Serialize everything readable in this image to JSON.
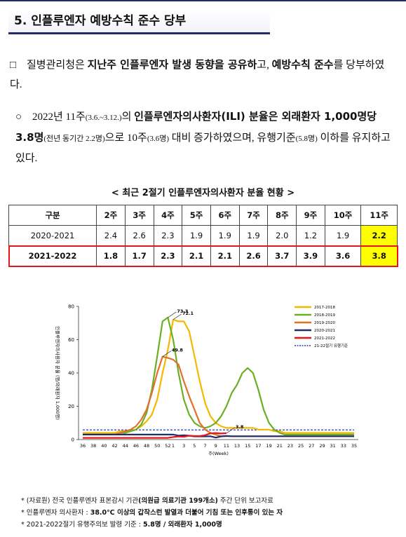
{
  "header": {
    "title": "5. 인플루엔자 예방수칙 준수 당부"
  },
  "paragraphs": [
    {
      "marker": "□",
      "runs": [
        {
          "text": "질병관리청은 "
        },
        {
          "text": "지난주 인플루엔자 발생 동향을 공유하",
          "style": "b"
        },
        {
          "text": "고, "
        },
        {
          "text": "예방수칙 준수",
          "style": "b"
        },
        {
          "text": "를 당부하였다."
        }
      ]
    },
    {
      "marker": "○",
      "runs": [
        {
          "text": "2022년 11주"
        },
        {
          "text": "(3.6.~3.12.)",
          "style": "s"
        },
        {
          "text": "의 "
        },
        {
          "text": "인플루엔자의사환자(ILI) 분율은 외래환자 1,000명당 3.8명",
          "style": "b"
        },
        {
          "text": "(전년 동기간 2.2명)",
          "style": "s"
        },
        {
          "text": "으로 10주"
        },
        {
          "text": "(3.6명)",
          "style": "s"
        },
        {
          "text": " 대비 증가하였으며, 유행기준"
        },
        {
          "text": "(5.8명)",
          "style": "s"
        },
        {
          "text": " 이하를 유지하고 있다."
        }
      ]
    }
  ],
  "table": {
    "title": "< 최근 2절기 인플루엔자의사환자 분율 현황 >",
    "header": [
      "구분",
      "2주",
      "3주",
      "4주",
      "5주",
      "6주",
      "7주",
      "8주",
      "9주",
      "10주",
      "11주"
    ],
    "rows": [
      [
        "2020-2021",
        "2.4",
        "2.6",
        "2.3",
        "1.9",
        "1.9",
        "1.9",
        "2.0",
        "1.2",
        "1.9",
        "2.2"
      ],
      [
        "2021-2022",
        "1.8",
        "1.7",
        "2.3",
        "2.1",
        "2.1",
        "2.6",
        "3.7",
        "3.9",
        "3.6",
        "3.8"
      ]
    ]
  },
  "chart_data": {
    "type": "line",
    "x_label": "주(Week)",
    "y_label": "인플루엔자의사환자 분율 (명/외래환자 1,000명)",
    "categories": [
      "36",
      null,
      "38",
      null,
      "40",
      null,
      "42",
      null,
      "44",
      null,
      "46",
      null,
      "48",
      null,
      "50",
      null,
      "52",
      "1",
      null,
      "3",
      null,
      "5",
      null,
      "7",
      null,
      "9",
      null,
      "11",
      null,
      "13",
      null,
      "15",
      null,
      "17",
      null,
      "19",
      null,
      "21",
      null,
      "23",
      null,
      "25",
      null,
      "27",
      null,
      "29",
      null,
      "31",
      null,
      "33",
      null,
      "35"
    ],
    "ylim": [
      0,
      80
    ],
    "yticks": [
      0,
      20,
      40,
      60,
      80
    ],
    "series": [
      {
        "name": "2017-2018",
        "color": "#f5b800",
        "values": [
          4,
          4,
          4,
          4,
          4,
          4,
          4,
          5,
          5,
          5,
          6,
          8,
          11,
          15,
          24,
          40,
          54,
          72.1,
          71,
          71,
          65,
          50,
          35,
          22,
          14,
          10,
          8,
          7,
          7,
          7,
          7,
          7,
          7,
          6,
          6,
          6,
          5,
          5,
          4,
          4,
          4,
          4,
          4,
          4,
          4,
          4,
          4,
          4,
          4,
          4,
          4,
          4
        ],
        "value_labels": [
          null,
          null,
          null,
          null,
          null,
          null,
          null,
          null,
          null,
          null,
          null,
          null,
          null,
          null,
          null,
          null,
          null,
          "72.1",
          null,
          null,
          null,
          null,
          null,
          null,
          null,
          null,
          null,
          null,
          null,
          null,
          null,
          null,
          null,
          null,
          null,
          null,
          null,
          null,
          null,
          null,
          null,
          null,
          null,
          null,
          null,
          null,
          null,
          null,
          null,
          null,
          null,
          null
        ]
      },
      {
        "name": "2018-2019",
        "color": "#6ab023",
        "values": [
          3,
          3,
          3,
          3,
          3,
          3,
          3,
          4,
          4,
          5,
          6,
          9,
          16,
          30,
          50,
          71,
          73.3,
          60,
          40,
          24,
          15,
          10,
          8,
          7,
          8,
          10,
          14,
          20,
          28,
          33,
          40,
          43,
          40,
          30,
          18,
          10,
          6,
          4,
          3,
          3,
          3,
          3,
          3,
          3,
          3,
          3,
          3,
          3,
          3,
          3,
          3,
          3
        ],
        "value_labels": [
          null,
          null,
          null,
          null,
          null,
          null,
          null,
          null,
          null,
          null,
          null,
          null,
          null,
          null,
          null,
          null,
          "73.3",
          null,
          null,
          null,
          null,
          null,
          null,
          null,
          null,
          null,
          null,
          null,
          null,
          null,
          null,
          null,
          null,
          null,
          null,
          null,
          null,
          null,
          null,
          null,
          null,
          null,
          null,
          null,
          null,
          null,
          null,
          null,
          null,
          null,
          null,
          null
        ]
      },
      {
        "name": "2019-2020",
        "color": "#e0702a",
        "values": [
          3,
          3,
          3,
          3,
          3,
          3,
          3,
          4,
          5,
          6,
          8,
          12,
          18,
          28,
          40,
          49.8,
          49,
          48,
          45,
          35,
          26,
          18,
          10,
          6,
          4,
          3,
          2,
          2,
          2,
          2,
          2,
          2,
          2,
          2,
          2,
          2,
          2,
          2,
          2,
          2,
          2,
          2,
          2,
          2,
          2,
          2,
          2,
          2,
          2,
          2,
          2,
          2
        ],
        "value_labels": [
          null,
          null,
          null,
          null,
          null,
          null,
          null,
          null,
          null,
          null,
          null,
          null,
          null,
          null,
          null,
          "49.8",
          null,
          null,
          null,
          null,
          null,
          null,
          null,
          null,
          null,
          null,
          null,
          null,
          null,
          null,
          null,
          null,
          null,
          null,
          null,
          null,
          null,
          null,
          null,
          null,
          null,
          null,
          null,
          null,
          null,
          null,
          null,
          null,
          null,
          null,
          null,
          null
        ]
      },
      {
        "name": "2020-2021",
        "color": "#1f2d6b",
        "values": [
          3,
          3,
          3,
          3,
          3,
          3,
          3,
          3,
          3,
          3,
          3,
          3,
          3,
          3,
          3,
          3,
          3,
          3,
          2.4,
          2.6,
          2.3,
          1.9,
          1.9,
          1.9,
          2.0,
          1.2,
          1.9,
          2.2,
          2,
          2,
          2,
          2,
          2,
          2,
          2,
          2,
          2,
          2,
          2,
          2,
          2,
          2,
          2,
          2,
          2,
          2,
          2,
          2,
          2,
          2,
          2,
          2
        ]
      },
      {
        "name": "2021-2022",
        "color": "#e8141b",
        "values": [
          1,
          1,
          1,
          1,
          1,
          1,
          1,
          1,
          1,
          1,
          1,
          1,
          1,
          1,
          1,
          1,
          1,
          1.5,
          1.8,
          1.7,
          2.3,
          2.1,
          2.1,
          2.6,
          3.7,
          3.9,
          3.6,
          3.8,
          null,
          null,
          null,
          null,
          null,
          null,
          null,
          null,
          null,
          null,
          null,
          null,
          null,
          null,
          null,
          null,
          null,
          null,
          null,
          null,
          null,
          null,
          null,
          null
        ],
        "value_labels": [
          null,
          null,
          null,
          null,
          null,
          null,
          null,
          null,
          null,
          null,
          null,
          null,
          null,
          null,
          null,
          null,
          null,
          null,
          null,
          null,
          null,
          null,
          null,
          null,
          null,
          null,
          null,
          "3.8",
          null,
          null,
          null,
          null,
          null,
          null,
          null,
          null,
          null,
          null,
          null,
          null,
          null,
          null,
          null,
          null,
          null,
          null,
          null,
          null,
          null,
          null,
          null,
          null
        ]
      }
    ],
    "threshold": {
      "name": "21-22절기 유행기준",
      "value": 5.8,
      "color": "#2a3bb5"
    }
  },
  "footnotes": [
    [
      {
        "text": "* (자료원) 전국 인플루엔자 표본감시 기관"
      },
      {
        "text": "(의원급 의료기관 199개소)",
        "style": "b"
      },
      {
        "text": " 주간 단위 보고자료"
      }
    ],
    [
      {
        "text": "* 인플루엔자 의사환자 : "
      },
      {
        "text": "38.0℃ 이상의 갑작스런 발열과 더불어 기침 또는 인후통이 있는 자",
        "style": "b"
      }
    ],
    [
      {
        "text": "* 2021-2022절기 유행주의보 발령 기준 : "
      },
      {
        "text": "5.8명 / 외래환자 1,000명",
        "style": "b"
      }
    ]
  ]
}
